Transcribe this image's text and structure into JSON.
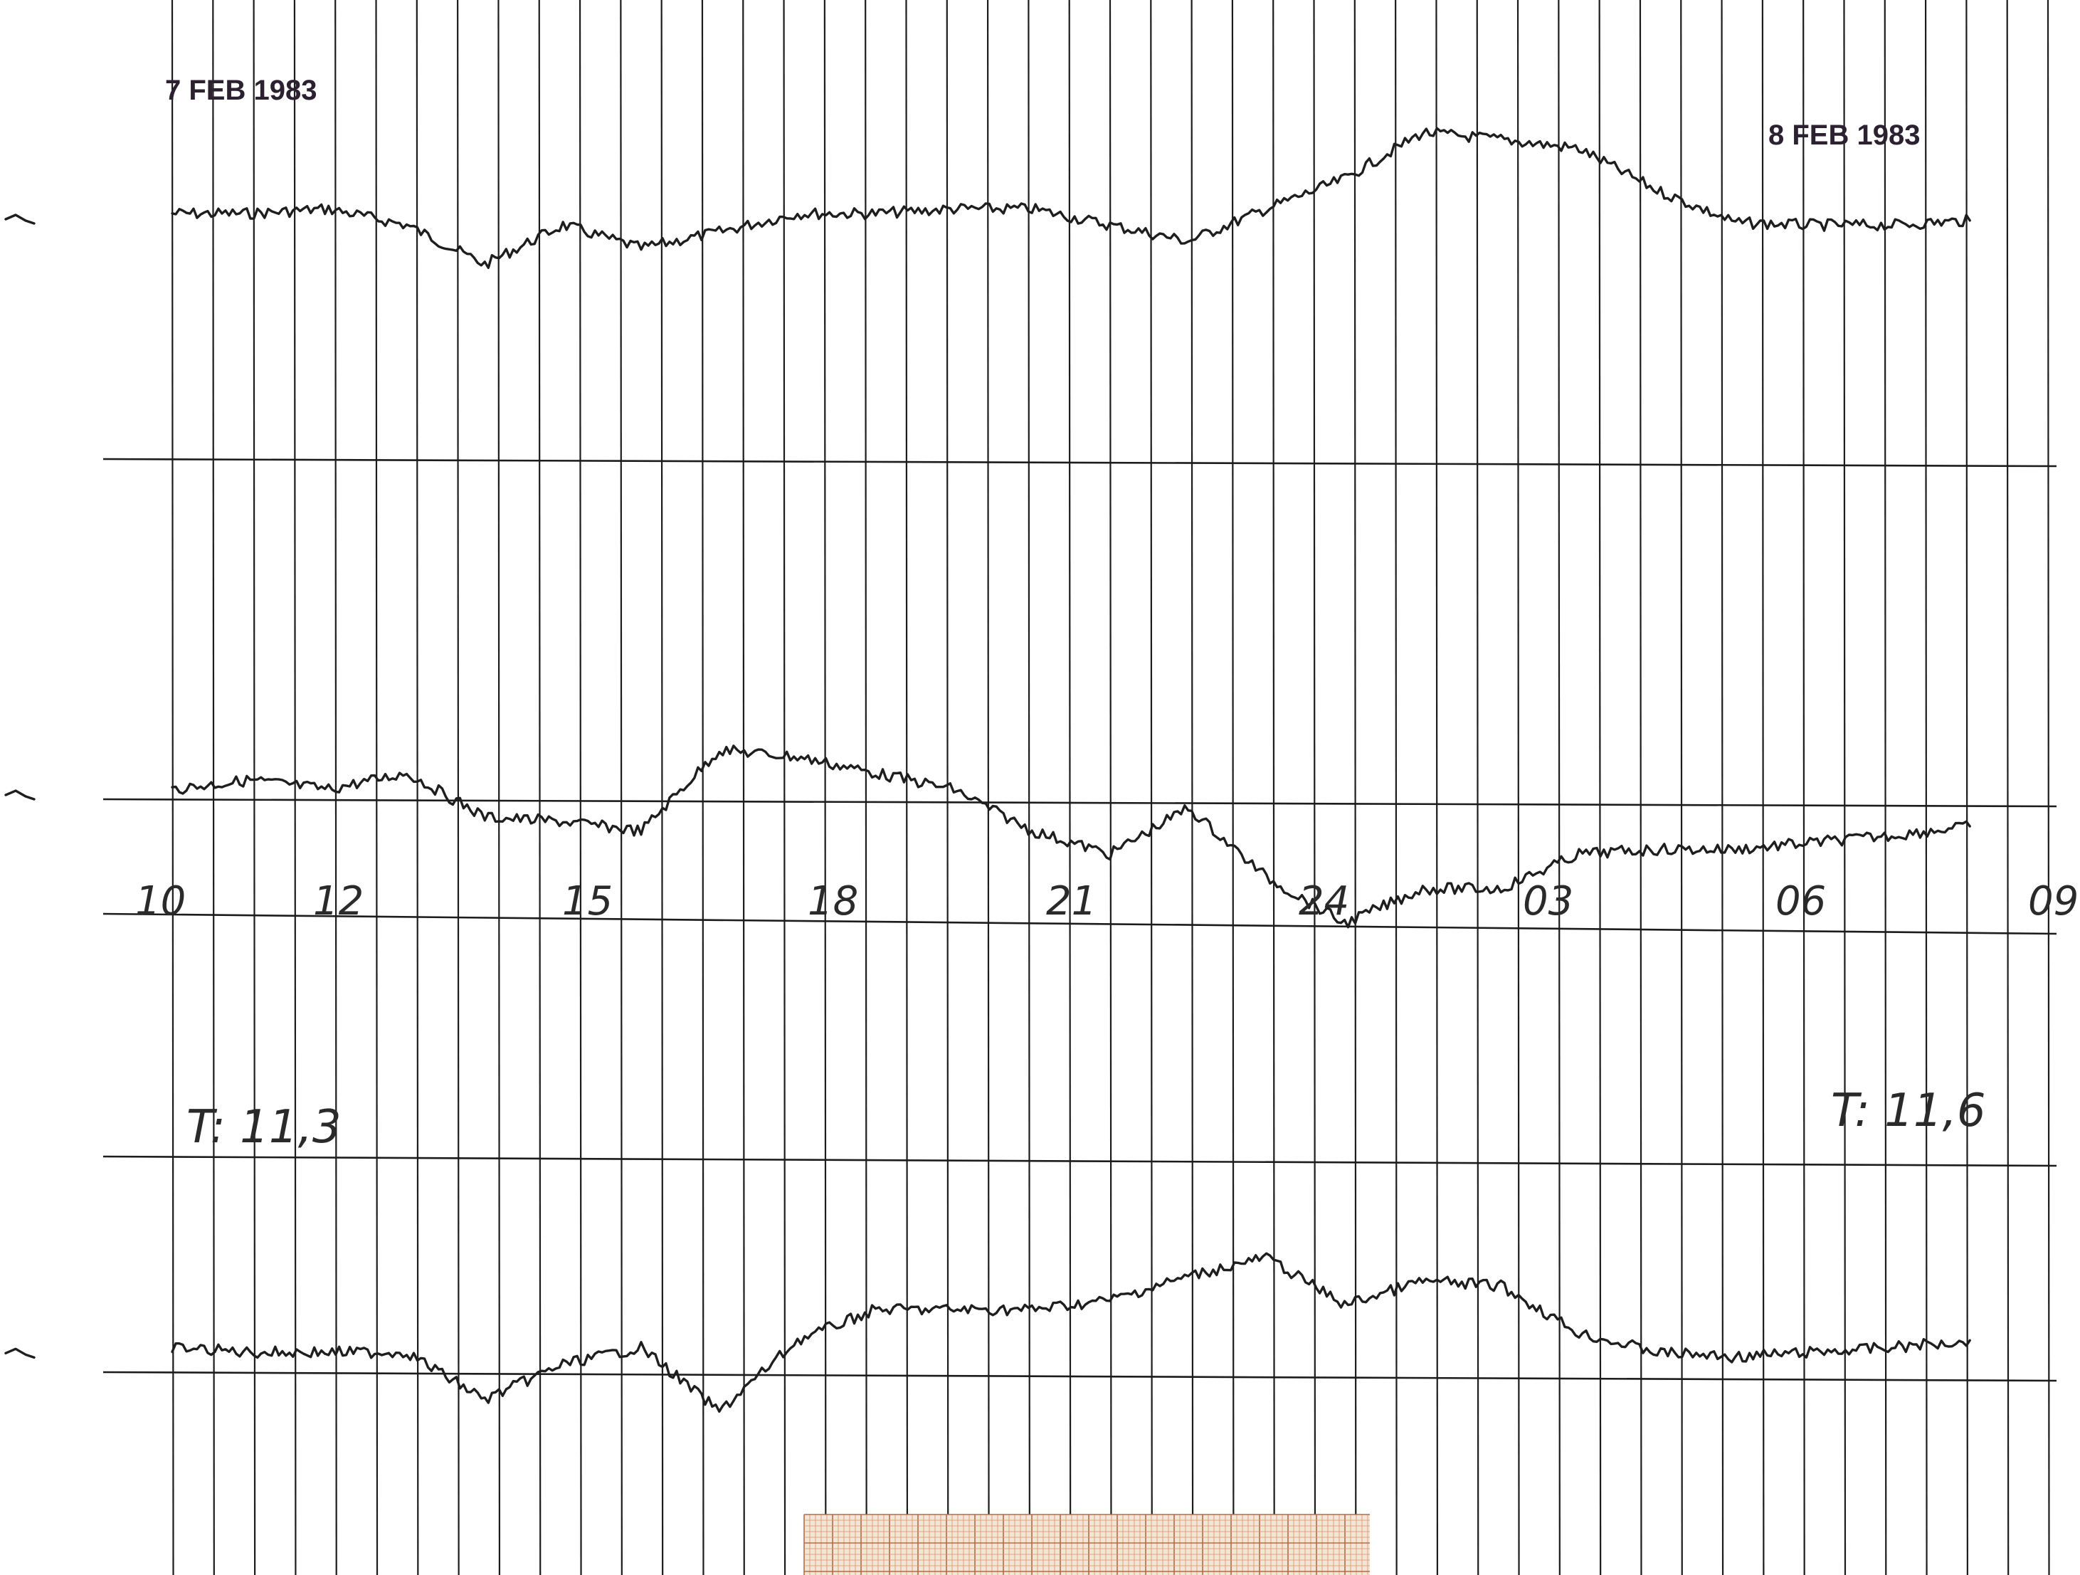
{
  "chart_data": {
    "type": "line",
    "title": "",
    "dates": {
      "start": "7 FEB 1983",
      "end": "8 FEB 1983"
    },
    "hour_labels": [
      "10",
      "12",
      "15",
      "18",
      "21",
      "24",
      "03",
      "06",
      "09"
    ],
    "temperature_notes": {
      "start": "T: 11,3",
      "end": "T: 11,6"
    },
    "x": [
      10,
      11,
      12,
      13,
      14,
      15,
      16,
      17,
      18,
      19,
      20,
      21,
      22,
      23,
      24,
      25,
      26,
      27,
      28,
      29,
      30,
      31,
      32,
      33
    ],
    "xlim": [
      10,
      34
    ],
    "grid": true,
    "series": [
      {
        "values": [
          60,
          60,
          62,
          55,
          38,
          55,
          45,
          52,
          60,
          60,
          62,
          62,
          55,
          48,
          62,
          75,
          95,
          92,
          88,
          70,
          56,
          55,
          55,
          57
        ],
        "ylim": [
          -20,
          100
        ]
      },
      {
        "values": [
          48,
          52,
          48,
          55,
          36,
          34,
          30,
          65,
          62,
          55,
          48,
          30,
          20,
          40,
          10,
          -10,
          5,
          5,
          20,
          22,
          22,
          25,
          28,
          32
        ],
        "ylim": [
          -20,
          100
        ]
      },
      {
        "values": [
          42,
          40,
          40,
          40,
          20,
          35,
          42,
          15,
          45,
          58,
          58,
          58,
          62,
          72,
          80,
          60,
          70,
          68,
          48,
          40,
          38,
          40,
          42,
          45
        ],
        "ylim": [
          -20,
          100
        ]
      }
    ]
  },
  "footer": {
    "graph_paper_colors": {
      "background": "#f3e6d4",
      "fine_line": "#d98f6a",
      "major_line": "#b96a48"
    }
  }
}
